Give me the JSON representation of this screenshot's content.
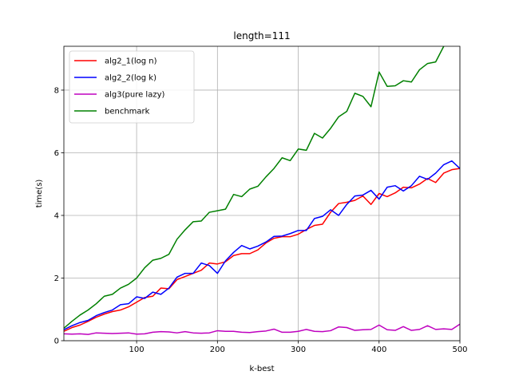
{
  "chart_data": {
    "type": "line",
    "title": "length=111",
    "xlabel": "k-best",
    "ylabel": "time(s)",
    "xlim": [
      10,
      500
    ],
    "ylim": [
      0,
      9.4
    ],
    "xticks": [
      100,
      200,
      300,
      400,
      500
    ],
    "yticks": [
      0,
      2,
      4,
      6,
      8
    ],
    "grid": true,
    "legend_position": "top-left",
    "x": [
      10,
      20,
      30,
      40,
      50,
      60,
      70,
      80,
      90,
      100,
      110,
      120,
      130,
      140,
      150,
      160,
      170,
      180,
      190,
      200,
      210,
      220,
      230,
      240,
      250,
      260,
      270,
      280,
      290,
      300,
      310,
      320,
      330,
      340,
      350,
      360,
      370,
      380,
      390,
      400,
      410,
      420,
      430,
      440,
      450,
      460,
      470,
      480,
      490,
      500
    ],
    "series": [
      {
        "name": "alg2_1(log n)",
        "color": "#ff0000",
        "values": [
          0.3,
          0.42,
          0.5,
          0.62,
          0.75,
          0.85,
          0.93,
          0.98,
          1.08,
          1.23,
          1.38,
          1.42,
          1.68,
          1.66,
          1.95,
          2.05,
          2.15,
          2.25,
          2.48,
          2.45,
          2.52,
          2.72,
          2.78,
          2.78,
          2.9,
          3.12,
          3.27,
          3.32,
          3.32,
          3.4,
          3.55,
          3.68,
          3.72,
          4.1,
          4.38,
          4.42,
          4.48,
          4.62,
          4.35,
          4.7,
          4.6,
          4.72,
          4.9,
          4.88,
          5.0,
          5.18,
          5.05,
          5.35,
          5.46,
          5.5
        ]
      },
      {
        "name": "alg2_2(log k)",
        "color": "#0000ff",
        "values": [
          0.35,
          0.48,
          0.58,
          0.65,
          0.8,
          0.9,
          0.98,
          1.15,
          1.18,
          1.4,
          1.35,
          1.55,
          1.48,
          1.68,
          2.03,
          2.15,
          2.15,
          2.48,
          2.4,
          2.15,
          2.55,
          2.82,
          3.04,
          2.93,
          3.02,
          3.15,
          3.33,
          3.34,
          3.42,
          3.52,
          3.52,
          3.9,
          3.97,
          4.18,
          4.0,
          4.35,
          4.62,
          4.65,
          4.8,
          4.52,
          4.9,
          4.95,
          4.78,
          4.95,
          5.25,
          5.15,
          5.35,
          5.62,
          5.74,
          5.5
        ]
      },
      {
        "name": "alg3(pure lazy)",
        "color": "#bf00bf",
        "values": [
          0.22,
          0.21,
          0.22,
          0.2,
          0.25,
          0.24,
          0.23,
          0.24,
          0.25,
          0.21,
          0.22,
          0.27,
          0.29,
          0.28,
          0.25,
          0.29,
          0.25,
          0.24,
          0.25,
          0.32,
          0.3,
          0.3,
          0.27,
          0.26,
          0.29,
          0.31,
          0.37,
          0.27,
          0.27,
          0.3,
          0.36,
          0.3,
          0.29,
          0.32,
          0.44,
          0.42,
          0.33,
          0.35,
          0.36,
          0.5,
          0.35,
          0.33,
          0.45,
          0.33,
          0.36,
          0.48,
          0.36,
          0.38,
          0.36,
          0.53
        ]
      },
      {
        "name": "benchmark",
        "color": "#008000",
        "values": [
          0.4,
          0.62,
          0.82,
          0.98,
          1.18,
          1.42,
          1.48,
          1.68,
          1.8,
          2.0,
          2.33,
          2.57,
          2.63,
          2.76,
          3.24,
          3.54,
          3.8,
          3.82,
          4.1,
          4.15,
          4.2,
          4.67,
          4.6,
          4.84,
          4.93,
          5.23,
          5.5,
          5.84,
          5.75,
          6.12,
          6.08,
          6.62,
          6.47,
          6.78,
          7.15,
          7.32,
          7.9,
          7.8,
          7.47,
          8.58,
          8.12,
          8.14,
          8.3,
          8.26,
          8.65,
          8.85,
          8.9,
          9.4,
          9.7,
          9.9
        ]
      }
    ]
  }
}
